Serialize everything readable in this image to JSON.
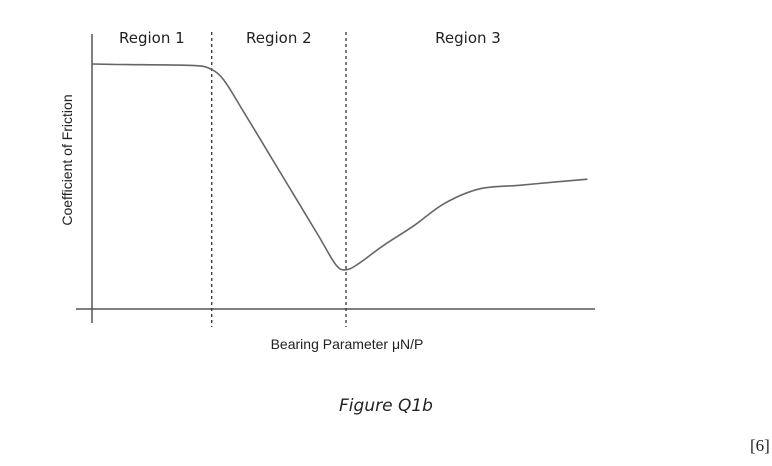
{
  "chart_data": {
    "type": "line",
    "xlabel": "Bearing Parameter μN/P",
    "ylabel": "Coefficient of Friction",
    "xlim": [
      0,
      10
    ],
    "ylim": [
      0,
      10
    ],
    "regions": [
      {
        "name": "Region 1",
        "start": 0,
        "end": 2.38
      },
      {
        "name": "Region 2",
        "start": 2.38,
        "end": 5.05
      },
      {
        "name": "Region 3",
        "start": 5.05,
        "end": 9.9
      }
    ],
    "boundaries": [
      2.38,
      5.05
    ],
    "series": [
      {
        "x": [
          0,
          0.5,
          1.0,
          1.5,
          2.0,
          2.3,
          2.6,
          3.0,
          3.5,
          4.0,
          4.5,
          4.85,
          5.05,
          5.3,
          5.8,
          6.4,
          7.0,
          7.7,
          8.5,
          9.3,
          9.85
        ],
        "y": [
          10.0,
          9.98,
          9.97,
          9.96,
          9.94,
          9.85,
          9.4,
          8.1,
          6.4,
          4.7,
          3.0,
          1.8,
          1.6,
          1.85,
          2.6,
          3.4,
          4.3,
          4.9,
          5.05,
          5.2,
          5.3
        ]
      }
    ],
    "grid": false
  },
  "caption": "Figure Q1b",
  "marks": "[6]"
}
